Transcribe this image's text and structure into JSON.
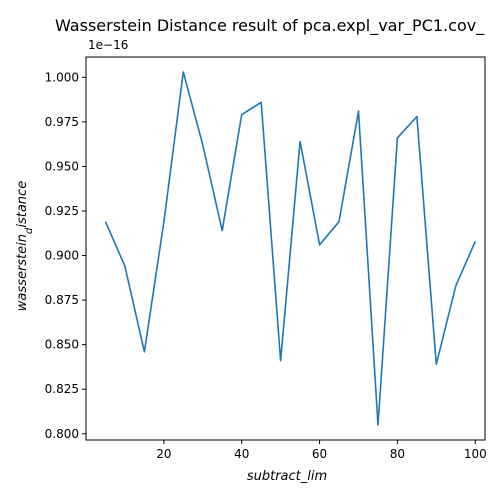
{
  "chart_data": {
    "type": "line",
    "title": "Wasserstein Distance result of pca.expl_var_PC1.cov_",
    "xlabel": "subtract_lim",
    "ylabel": "wasserstein_distance",
    "ylabel_display": "wasserstein$_d$istance",
    "y_offset_label": "1e−16",
    "y_scale": 1e-16,
    "xlim": [
      0,
      102.5
    ],
    "ylim": [
      0.7965,
      1.0114
    ],
    "xticks": [
      20,
      40,
      60,
      80,
      100
    ],
    "xtick_labels": [
      "20",
      "40",
      "60",
      "80",
      "100"
    ],
    "yticks": [
      0.8,
      0.825,
      0.85,
      0.875,
      0.9,
      0.925,
      0.95,
      0.975,
      1.0
    ],
    "ytick_labels": [
      "0.800",
      "0.825",
      "0.850",
      "0.875",
      "0.900",
      "0.925",
      "0.950",
      "0.975",
      "1.000"
    ],
    "grid": false,
    "series": [
      {
        "color": "#1f77b4",
        "x": [
          5,
          10,
          15,
          20,
          25,
          30,
          35,
          40,
          45,
          50,
          55,
          60,
          65,
          70,
          75,
          80,
          85,
          90,
          95,
          100
        ],
        "y": [
          0.919,
          0.894,
          0.846,
          0.919,
          1.003,
          0.962,
          0.914,
          0.979,
          0.986,
          0.841,
          0.964,
          0.906,
          0.919,
          0.981,
          0.805,
          0.966,
          0.978,
          0.839,
          0.883,
          0.908
        ]
      }
    ]
  }
}
